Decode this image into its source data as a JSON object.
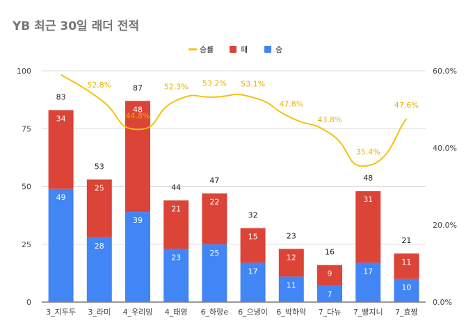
{
  "chart_data": {
    "type": "bar",
    "title": "YB 최근 30일 래더 전적",
    "legend": {
      "placement": "top",
      "items": [
        "승률",
        "패",
        "승"
      ]
    },
    "categories": [
      "3_지두두",
      "3_라미",
      "4_우리밍",
      "4_태영",
      "6_하랑e",
      "6_으냉이",
      "6_박하악",
      "7_다뉴",
      "7_빵지니",
      "7_효짱"
    ],
    "series": [
      {
        "name": "승",
        "type": "bar",
        "color": "#4285f4",
        "values": [
          49,
          28,
          39,
          23,
          25,
          17,
          11,
          7,
          17,
          10
        ]
      },
      {
        "name": "패",
        "type": "bar",
        "color": "#db4437",
        "values": [
          34,
          25,
          48,
          21,
          22,
          15,
          12,
          9,
          31,
          11
        ]
      },
      {
        "name": "승률",
        "type": "line",
        "axis": "right",
        "color": "#f4c20d",
        "values": [
          59.0,
          52.8,
          44.8,
          52.3,
          53.2,
          53.1,
          47.8,
          43.8,
          35.4,
          47.6
        ]
      }
    ],
    "totals": [
      83,
      53,
      87,
      44,
      47,
      32,
      23,
      16,
      48,
      21
    ],
    "rate_labels": [
      "",
      "52.8%",
      "44.8%",
      "52.3%",
      "53.2%",
      "53.1%",
      "47.8%",
      "43.8%",
      "35.4%",
      "47.6%"
    ],
    "yticks": [
      "0",
      "25",
      "50",
      "75",
      "100"
    ],
    "ylim": [
      0,
      100
    ],
    "y2ticks": [
      "0.0%",
      "20.0%",
      "40.0%",
      "60.0%"
    ],
    "y2lim": [
      0,
      60
    ],
    "grid": true,
    "stacked": true
  }
}
